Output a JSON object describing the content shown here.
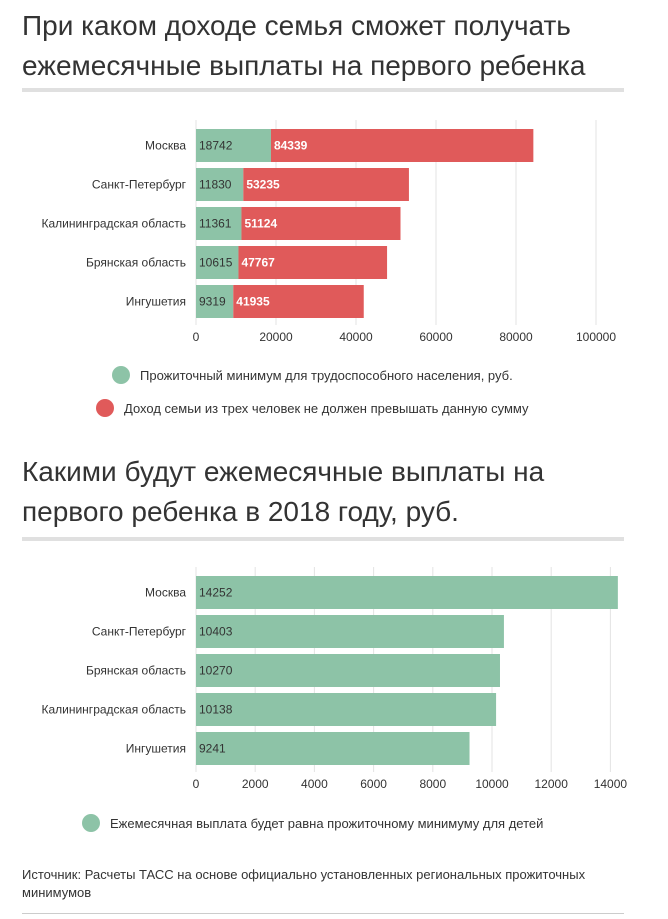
{
  "chart1": {
    "title": "При каком доходе семья сможет получать ежемесячные выплаты на первого ребенка",
    "legend": [
      {
        "label": "Прожиточный минимум для трудоспособного населения, руб.",
        "color": "#8dc3a7"
      },
      {
        "label": "Доход семьи из трех человек не должен превышать данную сумму",
        "color": "#e05a5a"
      }
    ]
  },
  "chart2": {
    "title": "Какими будут ежемесячные выплаты на первого ребенка в 2018 году, руб.",
    "legend": [
      {
        "label": "Ежемесячная выплата будет равна прожиточному минимуму для детей",
        "color": "#8dc3a7"
      }
    ]
  },
  "source": "Источник: Расчеты ТАСС на основе официально установленных региональных прожиточных минимумов",
  "chart_data": [
    {
      "type": "bar",
      "orientation": "horizontal",
      "categories": [
        "Москва",
        "Санкт-Петербург",
        "Калининградская область",
        "Брянская область",
        "Ингушетия"
      ],
      "series": [
        {
          "name": "Прожиточный минимум для трудоспособного населения, руб.",
          "values": [
            18742,
            11830,
            11361,
            10615,
            9319
          ],
          "color": "#8dc3a7"
        },
        {
          "name": "Доход семьи из трех человек не должен превышать данную сумму",
          "values": [
            84339,
            53235,
            51124,
            47767,
            41935
          ],
          "color": "#e05a5a"
        }
      ],
      "stacked": true,
      "xlim": [
        0,
        110000
      ],
      "xticks": [
        0,
        20000,
        40000,
        60000,
        80000,
        100000
      ],
      "grid": true
    },
    {
      "type": "bar",
      "orientation": "horizontal",
      "categories": [
        "Москва",
        "Санкт-Петербург",
        "Брянская область",
        "Калининградская область",
        "Ингушетия"
      ],
      "series": [
        {
          "name": "Ежемесячная выплата будет равна прожиточному минимуму для детей",
          "values": [
            14252,
            10403,
            10270,
            10138,
            9241
          ],
          "color": "#8dc3a7"
        }
      ],
      "xlim": [
        0,
        15000
      ],
      "xticks": [
        0,
        2000,
        4000,
        6000,
        8000,
        10000,
        12000,
        14000
      ],
      "grid": true
    }
  ]
}
